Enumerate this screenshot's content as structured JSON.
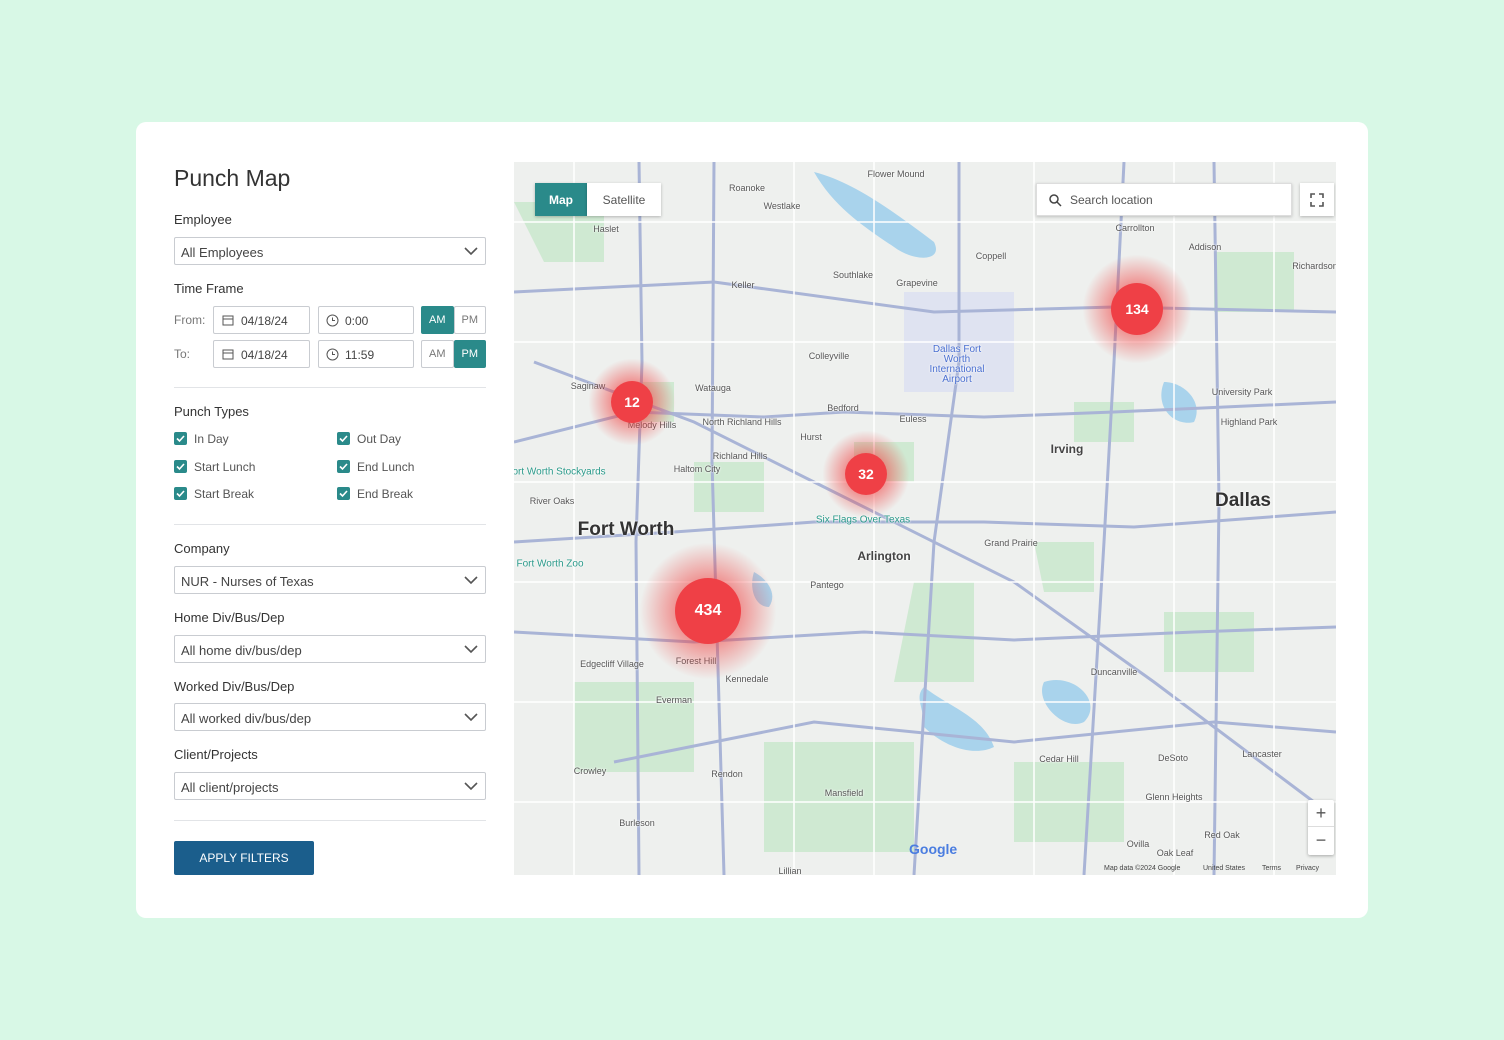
{
  "title": "Punch Map",
  "filters": {
    "employee": {
      "label": "Employee",
      "value": "All Employees"
    },
    "time_frame": {
      "label": "Time Frame",
      "meridiem_options": [
        "AM",
        "PM"
      ],
      "from": {
        "label": "From:",
        "date": "04/18/24",
        "time": "0:00",
        "meridiem": "AM"
      },
      "to": {
        "label": "To:",
        "date": "04/18/24",
        "time": "11:59",
        "meridiem": "PM"
      }
    },
    "punch_types": {
      "label": "Punch Types",
      "options": [
        {
          "label": "In Day",
          "checked": true
        },
        {
          "label": "Out Day",
          "checked": true
        },
        {
          "label": "Start Lunch",
          "checked": true
        },
        {
          "label": "End Lunch",
          "checked": true
        },
        {
          "label": "Start Break",
          "checked": true
        },
        {
          "label": "End Break",
          "checked": true
        }
      ]
    },
    "company": {
      "label": "Company",
      "value": "NUR - Nurses of Texas"
    },
    "home": {
      "label": "Home Div/Bus/Dep",
      "value": "All home div/bus/dep"
    },
    "worked": {
      "label": "Worked Div/Bus/Dep",
      "value": "All worked div/bus/dep"
    },
    "client": {
      "label": "Client/Projects",
      "value": "All client/projects"
    }
  },
  "apply_button": "APPLY FILTERS",
  "map": {
    "tabs": [
      "Map",
      "Satellite"
    ],
    "active_tab": "Map",
    "search_placeholder": "Search location",
    "clusters": [
      {
        "count": 12
      },
      {
        "count": 32
      },
      {
        "count": 134
      },
      {
        "count": 434
      }
    ],
    "places": [
      "Fort Worth",
      "Dallas",
      "Arlington",
      "Irving",
      "Grand Prairie",
      "Dallas Fort Worth International Airport",
      "Keller",
      "Grapevine",
      "Southlake",
      "Coppell",
      "Carrollton",
      "Addison",
      "Richardson",
      "Colleyville",
      "Bedford",
      "Hurst",
      "Euless",
      "Watauga",
      "Haltom City",
      "Richland Hills",
      "North Richland Hills",
      "Saginaw",
      "Melody Hills",
      "River Oaks",
      "Cedar Hill",
      "DeSoto",
      "Duncanville",
      "Lancaster",
      "Mansfield",
      "Kennedale",
      "Everman",
      "Crowley",
      "Rendon",
      "Burleson",
      "Edgecliff Village",
      "Forest Hill",
      "Pantego",
      "Glenn Heights",
      "Red Oak",
      "Ovilla",
      "Oak Leaf",
      "Highland Park",
      "University Park",
      "Haslet",
      "Roanoke",
      "Westlake",
      "Flower Mound",
      "Fort Worth Stockyards",
      "Fort Worth Zoo",
      "Six Flags Over Texas",
      "Lillian"
    ],
    "zoom_in": "+",
    "zoom_out": "−",
    "logo": "Google",
    "attribution": [
      "Map data ©2024 Google",
      "United States",
      "Terms",
      "Privacy"
    ]
  }
}
